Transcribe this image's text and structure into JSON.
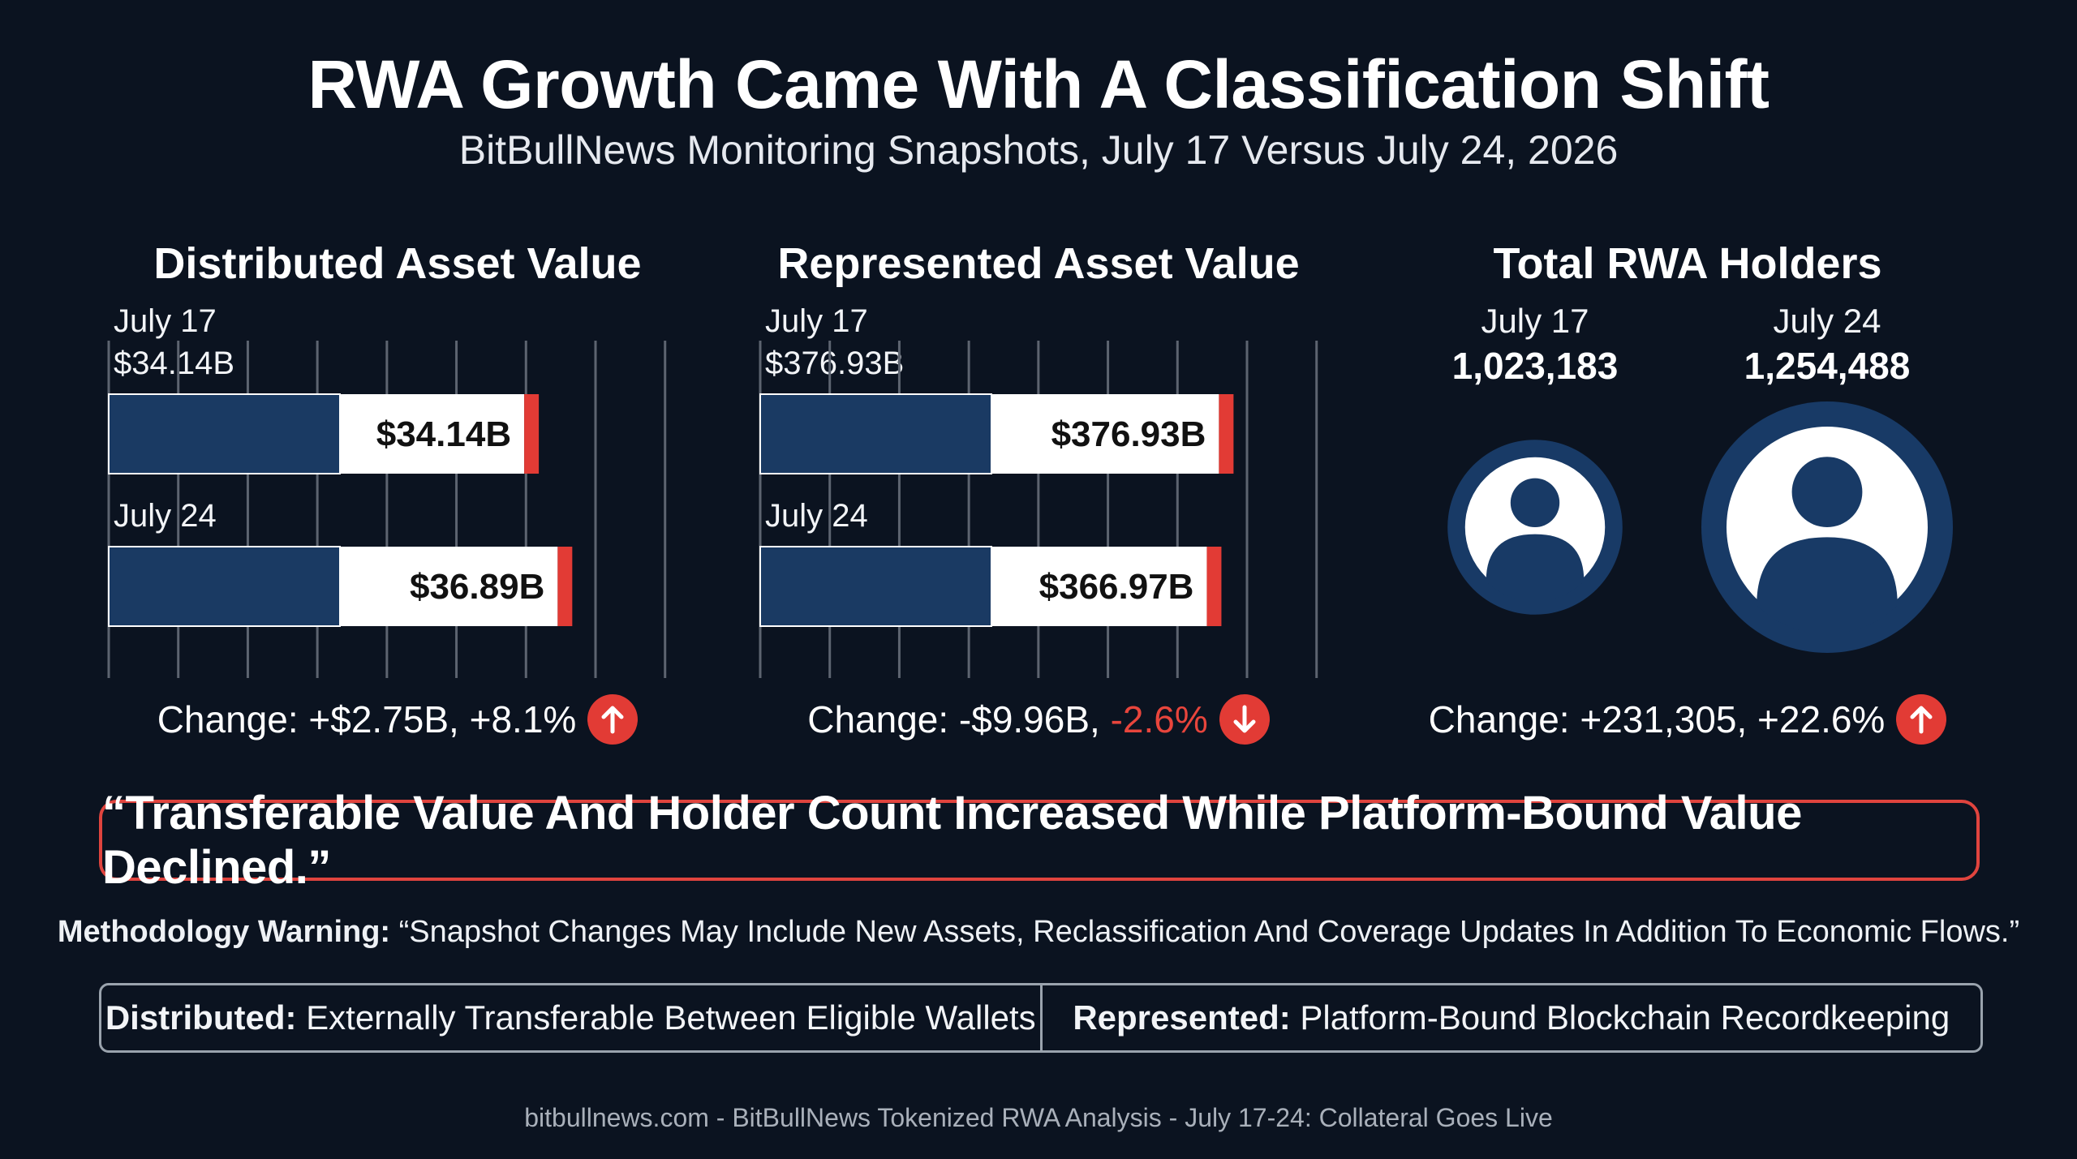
{
  "title": "RWA Growth Came With A Classification Shift",
  "subtitle": "BitBullNews Monitoring Snapshots, July 17 Versus July 24, 2026",
  "colors": {
    "background": "#0b1320",
    "bar_dark": "#1a3a63",
    "bar_light": "#ffffff",
    "accent_red": "#e23b35",
    "holder_circle": "#183a66"
  },
  "chart_data": [
    {
      "type": "bar",
      "title": "Distributed Asset Value",
      "categories": [
        "July 17",
        "July 24"
      ],
      "values": [
        34.14,
        36.89
      ],
      "value_labels": [
        "$34.14B",
        "$36.89B"
      ],
      "top_label": "$34.14B",
      "unit": "USD billions",
      "xlim": [
        0,
        40
      ],
      "grid": true,
      "change_text": "Change: +$2.75B, +8.1%",
      "change_direction": "up"
    },
    {
      "type": "bar",
      "title": "Represented Asset Value",
      "categories": [
        "July 17",
        "July 24"
      ],
      "values": [
        376.93,
        366.97
      ],
      "value_labels": [
        "$376.93B",
        "$366.97B"
      ],
      "top_label": "$376.93B",
      "unit": "USD billions",
      "xlim": [
        0,
        400
      ],
      "grid": true,
      "change_prefix": "Change: -$9.96B, ",
      "change_pct": "-2.6%",
      "change_direction": "down"
    },
    {
      "type": "pictogram",
      "title": "Total RWA Holders",
      "categories": [
        "July 17",
        "July 24"
      ],
      "values": [
        1023183,
        1254488
      ],
      "value_labels": [
        "1,023,183",
        "1,254,488"
      ],
      "change_text": "Change: +231,305, +22.6%",
      "change_direction": "up"
    }
  ],
  "icons": {
    "up": "arrow-up-icon",
    "down": "arrow-down-icon",
    "holder": "user-icon"
  },
  "quote": "“Transferable Value And Holder Count Increased While Platform-Bound Value Declined.”",
  "methodology": {
    "label": "Methodology Warning:",
    "text": " “Snapshot Changes May Include New Assets, Reclassification And Coverage Updates In Addition To Economic Flows.”"
  },
  "definitions": [
    {
      "term": "Distributed:",
      "text": " Externally Transferable Between Eligible Wallets"
    },
    {
      "term": "Represented:",
      "text": " Platform-Bound Blockchain Recordkeeping"
    }
  ],
  "footer": "bitbullnews.com - BitBullNews Tokenized RWA Analysis - July 17-24: Collateral Goes Live"
}
